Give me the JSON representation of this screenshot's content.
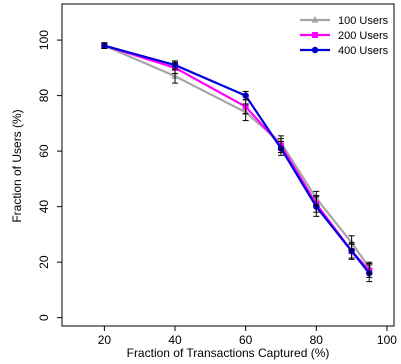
{
  "chart_data": {
    "type": "line",
    "title": "",
    "xlabel": "Fraction of Transactions Captured (%)",
    "ylabel": "Fraction of Users (%)",
    "xlim": [
      8,
      102
    ],
    "ylim": [
      -3,
      113
    ],
    "x_ticks": [
      20,
      40,
      60,
      80,
      100
    ],
    "y_ticks": [
      0,
      20,
      40,
      60,
      80,
      100
    ],
    "grid": false,
    "legend_position": "top-right",
    "x": [
      20,
      40,
      60,
      70,
      80,
      90,
      95
    ],
    "series": [
      {
        "name": "100 Users",
        "color": "#a6a6a6",
        "marker": "triangle",
        "values": [
          98,
          87,
          74,
          63,
          43,
          27,
          18
        ],
        "error": [
          1.0,
          2.5,
          3.0,
          2.5,
          2.5,
          2.5,
          2.0
        ]
      },
      {
        "name": "200 Users",
        "color": "#ff00ff",
        "marker": "square",
        "values": [
          98,
          90,
          76,
          62,
          41,
          24,
          17
        ],
        "error": [
          1.0,
          2.0,
          2.5,
          2.5,
          3.0,
          2.5,
          2.5
        ]
      },
      {
        "name": "400 Users",
        "color": "#0000dd",
        "marker": "circle",
        "values": [
          98,
          91,
          80,
          61,
          40,
          24,
          16
        ],
        "error": [
          1.0,
          1.5,
          1.5,
          2.5,
          3.5,
          3.0,
          3.0
        ]
      }
    ]
  }
}
